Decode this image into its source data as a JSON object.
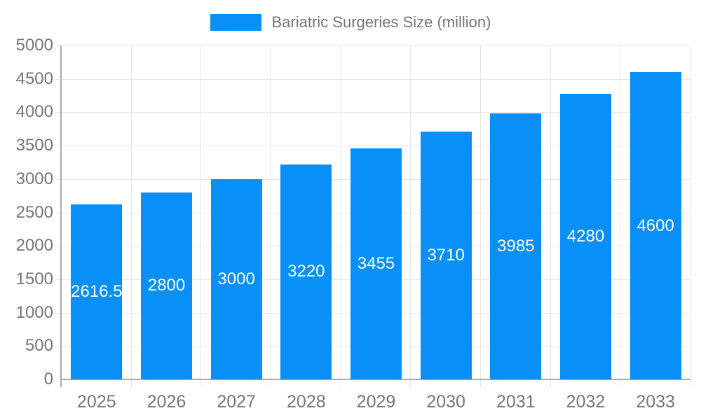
{
  "chart_data": {
    "type": "bar",
    "legend_label": "Bariatric Surgeries Size (million)",
    "categories": [
      "2025",
      "2026",
      "2027",
      "2028",
      "2029",
      "2030",
      "2031",
      "2032",
      "2033"
    ],
    "values": [
      2616.5,
      2800,
      3000,
      3220,
      3455,
      3710,
      3985,
      4280,
      4600
    ],
    "value_labels": [
      "2616.5",
      "2800",
      "3000",
      "3220",
      "3455",
      "3710",
      "3985",
      "4280",
      "4600"
    ],
    "ylim": [
      0,
      5000
    ],
    "yticks": [
      0,
      500,
      1000,
      1500,
      2000,
      2500,
      3000,
      3500,
      4000,
      4500,
      5000
    ],
    "grid": true,
    "legend_position": "top",
    "colors": {
      "bar": "#0890f8",
      "grid": "#e6e6e6",
      "axis": "#aaaaaa",
      "tick_label": "#757575",
      "legend_label": "#757575",
      "bar_label": "#ffffff"
    }
  }
}
